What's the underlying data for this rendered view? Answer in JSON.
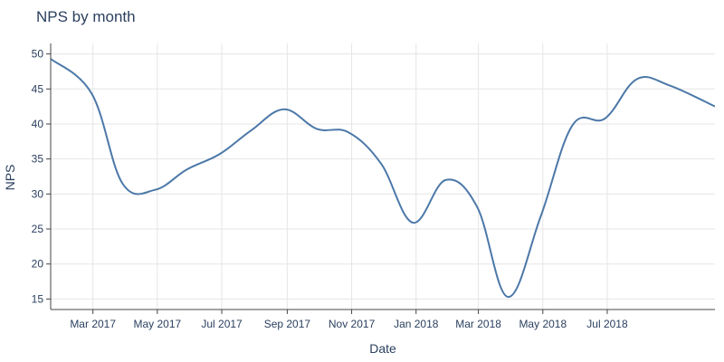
{
  "chart_data": {
    "type": "line",
    "title": "NPS by month",
    "xlabel": "Date",
    "ylabel": "NPS",
    "ylim": [
      13.5,
      51.5
    ],
    "y_ticks": [
      15,
      20,
      25,
      30,
      35,
      40,
      45,
      50
    ],
    "x_range": [
      "2017-01-20",
      "2018-10-11"
    ],
    "x_ticks": [
      {
        "date": "2017-03-01",
        "label": "Mar 2017"
      },
      {
        "date": "2017-05-01",
        "label": "May 2017"
      },
      {
        "date": "2017-07-01",
        "label": "Jul 2017"
      },
      {
        "date": "2017-09-01",
        "label": "Sep 2017"
      },
      {
        "date": "2017-11-01",
        "label": "Nov 2017"
      },
      {
        "date": "2018-01-01",
        "label": "Jan 2018"
      },
      {
        "date": "2018-03-01",
        "label": "Mar 2018"
      },
      {
        "date": "2018-05-01",
        "label": "May 2018"
      },
      {
        "date": "2018-07-01",
        "label": "Jul 2018"
      }
    ],
    "grid": true,
    "line_color": "#4c78a8",
    "series": [
      {
        "x": [
          "2017-01-20",
          "2017-02-28",
          "2017-03-29",
          "2017-04-29",
          "2017-05-29",
          "2017-06-29",
          "2017-07-29",
          "2017-08-29",
          "2017-09-29",
          "2017-10-29",
          "2017-11-29",
          "2017-12-29",
          "2018-01-29",
          "2018-02-28",
          "2018-03-29",
          "2018-04-29",
          "2018-05-29",
          "2018-06-29",
          "2018-07-29",
          "2018-08-29",
          "2018-10-11"
        ],
        "y": [
          49.3,
          44.3,
          31.5,
          30.6,
          33.5,
          35.7,
          39.1,
          42.1,
          39.3,
          38.8,
          34.3,
          25.9,
          32.0,
          28.1,
          15.3,
          26.8,
          39.8,
          40.8,
          46.4,
          45.5,
          42.5
        ]
      }
    ]
  }
}
